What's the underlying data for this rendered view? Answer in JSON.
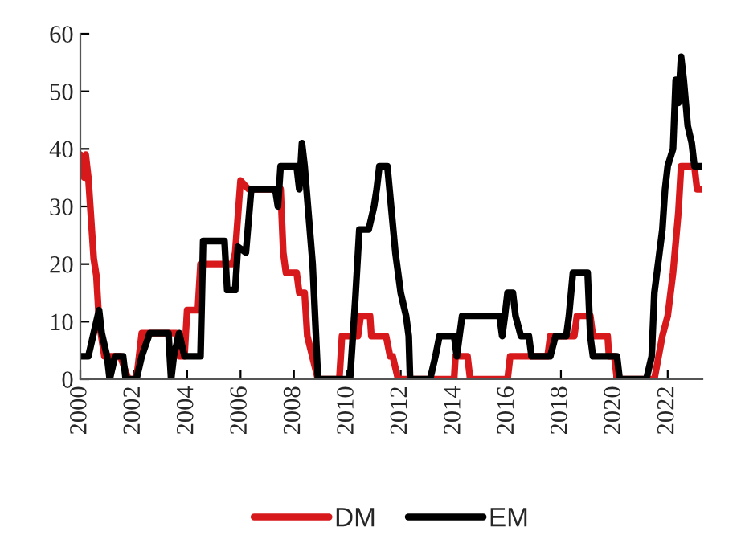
{
  "chart_data": {
    "type": "line",
    "xlim": [
      2000,
      2023.3
    ],
    "xticks": [
      2000,
      2002,
      2004,
      2006,
      2008,
      2010,
      2012,
      2014,
      2016,
      2018,
      2020,
      2022
    ],
    "ylim": [
      0,
      60
    ],
    "yticks": [
      0,
      10,
      20,
      30,
      40,
      50,
      60
    ],
    "grid": false,
    "legend": "bottom",
    "marker": "none",
    "line_style": "solid",
    "series": [
      {
        "name": "DM",
        "color": "#d7191c",
        "x": [
          2000,
          2000.15,
          2000.2,
          2000.3,
          2000.5,
          2000.6,
          2000.7,
          2000.9,
          2001.5,
          2001.8,
          2002.1,
          2002.3,
          2003.6,
          2003.7,
          2003.9,
          2004.0,
          2004.4,
          2004.5,
          2005.7,
          2005.8,
          2006.0,
          2006.3,
          2007.5,
          2007.6,
          2007.7,
          2008.1,
          2008.2,
          2008.4,
          2008.5,
          2008.9,
          2009.7,
          2009.8,
          2010.4,
          2010.5,
          2010.85,
          2010.9,
          2011.45,
          2011.6,
          2011.7,
          2011.9,
          2014.0,
          2014.05,
          2014.5,
          2014.6,
          2016.0,
          2016.1,
          2017.5,
          2017.6,
          2018.5,
          2018.6,
          2019.1,
          2019.2,
          2019.75,
          2019.8,
          2020.0,
          2020.1,
          2021.5,
          2021.8,
          2022.0,
          2022.2,
          2022.4,
          2022.5,
          2023.0,
          2023.1,
          2023.3
        ],
        "values": [
          39,
          35,
          39,
          35,
          21,
          18,
          10,
          4,
          4,
          0,
          0,
          8,
          8,
          4,
          4,
          12,
          12,
          20,
          20,
          22,
          34.5,
          33,
          33,
          22,
          18.5,
          18.5,
          15,
          15,
          7.5,
          0,
          0,
          7.5,
          7.5,
          11,
          11,
          7.5,
          7.5,
          4,
          4,
          0,
          0,
          4,
          4,
          0,
          0,
          4,
          4,
          7.5,
          7.5,
          11,
          11,
          7.5,
          7.5,
          4,
          4,
          0,
          0,
          7.5,
          11,
          18.5,
          29,
          37,
          37,
          33,
          33
        ]
      },
      {
        "name": "EM",
        "color": "#000000",
        "x": [
          2000,
          2000.3,
          2000.5,
          2000.7,
          2000.8,
          2001.0,
          2001.1,
          2001.3,
          2001.6,
          2001.7,
          2002.1,
          2002.3,
          2002.6,
          2003.3,
          2003.4,
          2003.5,
          2003.7,
          2003.9,
          2004.5,
          2004.6,
          2005.4,
          2005.5,
          2005.8,
          2005.9,
          2006.2,
          2006.4,
          2007.3,
          2007.4,
          2007.5,
          2008.1,
          2008.2,
          2008.3,
          2008.4,
          2008.7,
          2008.9,
          2010.1,
          2010.3,
          2010.45,
          2010.8,
          2011.0,
          2011.1,
          2011.2,
          2011.5,
          2011.8,
          2012.0,
          2012.2,
          2012.3,
          2012.35,
          2013.1,
          2013.3,
          2013.45,
          2014.0,
          2014.1,
          2014.2,
          2014.3,
          2015.7,
          2015.8,
          2015.9,
          2016.0,
          2016.2,
          2016.3,
          2016.5,
          2016.8,
          2016.9,
          2017.6,
          2017.8,
          2018.2,
          2018.3,
          2018.45,
          2019.0,
          2019.1,
          2019.2,
          2020.1,
          2020.2,
          2021.2,
          2021.4,
          2021.5,
          2021.8,
          2021.9,
          2022.0,
          2022.2,
          2022.3,
          2022.4,
          2022.5,
          2022.6,
          2022.75,
          2022.9,
          2023.0,
          2023.3
        ],
        "values": [
          4,
          4,
          8,
          12,
          8,
          4,
          0,
          4,
          4,
          0,
          0,
          4,
          8,
          8,
          0,
          4,
          8,
          4,
          4,
          24,
          24,
          15.5,
          15.5,
          23,
          22,
          33,
          33,
          30,
          37,
          37,
          33,
          41,
          37,
          20,
          0,
          0,
          14,
          26,
          26,
          30,
          33,
          37,
          37,
          22,
          15,
          11,
          7.5,
          0,
          0,
          4,
          7.5,
          7.5,
          4,
          7.5,
          11,
          11,
          7.5,
          11,
          15,
          15,
          11,
          7.5,
          7.5,
          4,
          4,
          7.5,
          7.5,
          11,
          18.5,
          18.5,
          7.5,
          4,
          4,
          0,
          0,
          4,
          15,
          26,
          33,
          37,
          40,
          52,
          48,
          56,
          52,
          44,
          41,
          37,
          37
        ]
      }
    ]
  }
}
